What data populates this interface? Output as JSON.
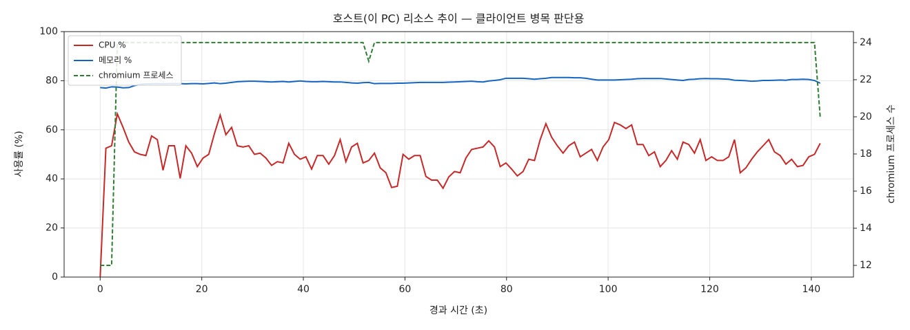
{
  "chart_data": {
    "type": "line",
    "title": "호스트(이 PC) 리소스 추이 — 클라이언트 병목 판단용",
    "xlabel": "경과 시간 (초)",
    "ylabel": "사용률 (%)",
    "y2label": "chromium 프로세스 수",
    "x": [
      0,
      1.125,
      2.25,
      3.375,
      4.5,
      5.625,
      6.75,
      7.875,
      9,
      10.125,
      11.25,
      12.375,
      13.5,
      14.625,
      15.75,
      16.875,
      18,
      19.125,
      20.25,
      21.375,
      22.5,
      23.625,
      24.75,
      25.875,
      27,
      28.125,
      29.25,
      30.375,
      31.5,
      32.625,
      33.75,
      34.875,
      36,
      37.125,
      38.25,
      39.375,
      40.5,
      41.625,
      42.75,
      43.875,
      45,
      46.125,
      47.25,
      48.375,
      49.5,
      50.625,
      51.75,
      52.875,
      54,
      55.125,
      56.25,
      57.375,
      58.5,
      59.625,
      60.75,
      61.875,
      63,
      64.125,
      65.25,
      66.375,
      67.5,
      68.625,
      69.75,
      70.875,
      72,
      73.125,
      74.25,
      75.375,
      76.5,
      77.625,
      78.75,
      79.875,
      81,
      82.125,
      83.25,
      84.375,
      85.5,
      86.625,
      87.75,
      88.875,
      90,
      91.125,
      92.25,
      93.375,
      94.5,
      95.625,
      96.75,
      97.875,
      99,
      100.125,
      101.25,
      102.375,
      103.5,
      104.625,
      105.75,
      106.875,
      108,
      109.125,
      110.25,
      111.375,
      112.5,
      113.625,
      114.75,
      115.875,
      117,
      118.125,
      119.25,
      120.375,
      121.5,
      122.625,
      123.75,
      124.875,
      126,
      127.125,
      128.25,
      129.375,
      130.5,
      131.625,
      132.75,
      133.875,
      135,
      136.125,
      137.25,
      138.375,
      139.5,
      140.625,
      141.75
    ],
    "series": [
      {
        "name": "CPU %",
        "color": "#c62828",
        "axis": "y",
        "linestyle": "solid",
        "values": [
          0,
          52.5,
          53.5,
          66.5,
          61,
          55,
          51,
          50,
          49.5,
          57.5,
          56,
          43.5,
          53.5,
          53.5,
          40.2,
          53.5,
          50.5,
          45,
          48.5,
          50,
          58.5,
          66,
          58,
          61,
          53.5,
          53,
          53.5,
          50,
          50.5,
          48.5,
          45.5,
          47,
          46.5,
          54.5,
          50,
          48,
          49,
          44,
          49.5,
          49.5,
          46,
          49.5,
          56,
          47,
          53,
          54.5,
          46.5,
          47.5,
          50.5,
          44.5,
          42.5,
          36.5,
          37,
          50,
          48,
          49.5,
          49.5,
          41,
          39.5,
          39.5,
          36.2,
          40.8,
          43,
          42.5,
          48.5,
          52,
          52.5,
          53,
          55.5,
          53,
          45,
          46.5,
          44,
          41.2,
          43,
          48,
          47.5,
          56,
          62.5,
          57,
          53.5,
          50.5,
          53.5,
          55,
          49,
          50.5,
          52,
          47.5,
          53,
          56,
          63,
          62,
          60.5,
          62,
          54,
          54,
          49.5,
          51,
          45,
          47.5,
          51.5,
          48,
          55,
          54,
          50.5,
          56,
          47.5,
          49,
          47.5,
          47.5,
          49,
          56,
          42.5,
          44.5,
          48,
          51,
          53.5,
          56,
          51,
          49.5,
          46,
          48,
          45,
          45.5,
          49,
          50,
          54.5
        ]
      },
      {
        "name": "메모리 %",
        "color": "#1565c0",
        "axis": "y",
        "linestyle": "solid",
        "values": [
          77.2,
          77.0,
          77.5,
          77.4,
          77.1,
          77.2,
          78.0,
          78.5,
          78.7,
          78.7,
          78.8,
          78.7,
          78.8,
          78.8,
          78.8,
          78.7,
          78.8,
          78.8,
          78.7,
          78.9,
          79.1,
          78.8,
          79.0,
          79.3,
          79.6,
          79.7,
          79.8,
          79.8,
          79.7,
          79.6,
          79.5,
          79.6,
          79.7,
          79.5,
          79.7,
          79.9,
          79.7,
          79.6,
          79.6,
          79.7,
          79.6,
          79.5,
          79.5,
          79.3,
          79.1,
          79.0,
          79.2,
          79.3,
          78.8,
          78.9,
          78.9,
          78.9,
          79.0,
          79.0,
          79.1,
          79.2,
          79.3,
          79.3,
          79.3,
          79.3,
          79.3,
          79.4,
          79.5,
          79.6,
          79.7,
          79.8,
          79.6,
          79.5,
          79.9,
          80.1,
          80.4,
          81.0,
          81.0,
          81.0,
          81.0,
          80.8,
          80.6,
          80.8,
          81.0,
          81.3,
          81.3,
          81.3,
          81.3,
          81.2,
          81.2,
          81.0,
          80.6,
          80.3,
          80.3,
          80.3,
          80.3,
          80.4,
          80.5,
          80.6,
          80.8,
          80.9,
          80.9,
          80.9,
          80.9,
          80.7,
          80.5,
          80.3,
          80.1,
          80.5,
          80.6,
          80.8,
          80.9,
          80.8,
          80.8,
          80.7,
          80.6,
          80.2,
          80.1,
          80.0,
          79.8,
          79.9,
          80.1,
          80.1,
          80.2,
          80.3,
          80.2,
          80.5,
          80.5,
          80.6,
          80.5,
          80.1,
          79.0
        ]
      },
      {
        "name": "chromium 프로세스",
        "color": "#2e7d32",
        "axis": "y2",
        "linestyle": "dashed",
        "values": [
          12,
          12,
          12,
          24,
          24,
          24,
          24,
          24,
          24,
          24,
          24,
          24,
          24,
          24,
          24,
          24,
          24,
          24,
          24,
          24,
          24,
          24,
          24,
          24,
          24,
          24,
          24,
          24,
          24,
          24,
          24,
          24,
          24,
          24,
          24,
          24,
          24,
          24,
          24,
          24,
          24,
          24,
          24,
          24,
          24,
          24,
          24,
          23,
          24,
          24,
          24,
          24,
          24,
          24,
          24,
          24,
          24,
          24,
          24,
          24,
          24,
          24,
          24,
          24,
          24,
          24,
          24,
          24,
          24,
          24,
          24,
          24,
          24,
          24,
          24,
          24,
          24,
          24,
          24,
          24,
          24,
          24,
          24,
          24,
          24,
          24,
          24,
          24,
          24,
          24,
          24,
          24,
          24,
          24,
          24,
          24,
          24,
          24,
          24,
          24,
          24,
          24,
          24,
          24,
          24,
          24,
          24,
          24,
          24,
          24,
          24,
          24,
          24,
          24,
          24,
          24,
          24,
          24,
          24,
          24,
          24,
          24,
          24,
          24,
          24,
          24,
          20
        ]
      }
    ],
    "xlim": [
      -7.1,
      148.3
    ],
    "xticks": [
      0,
      20,
      40,
      60,
      80,
      100,
      120,
      140
    ],
    "ylim": [
      0,
      100
    ],
    "yticks": [
      0,
      20,
      40,
      60,
      80,
      100
    ],
    "y2lim": [
      11.37,
      24.59
    ],
    "y2ticks": [
      12,
      14,
      16,
      18,
      20,
      22,
      24
    ],
    "grid": true,
    "legend": "upper left"
  }
}
